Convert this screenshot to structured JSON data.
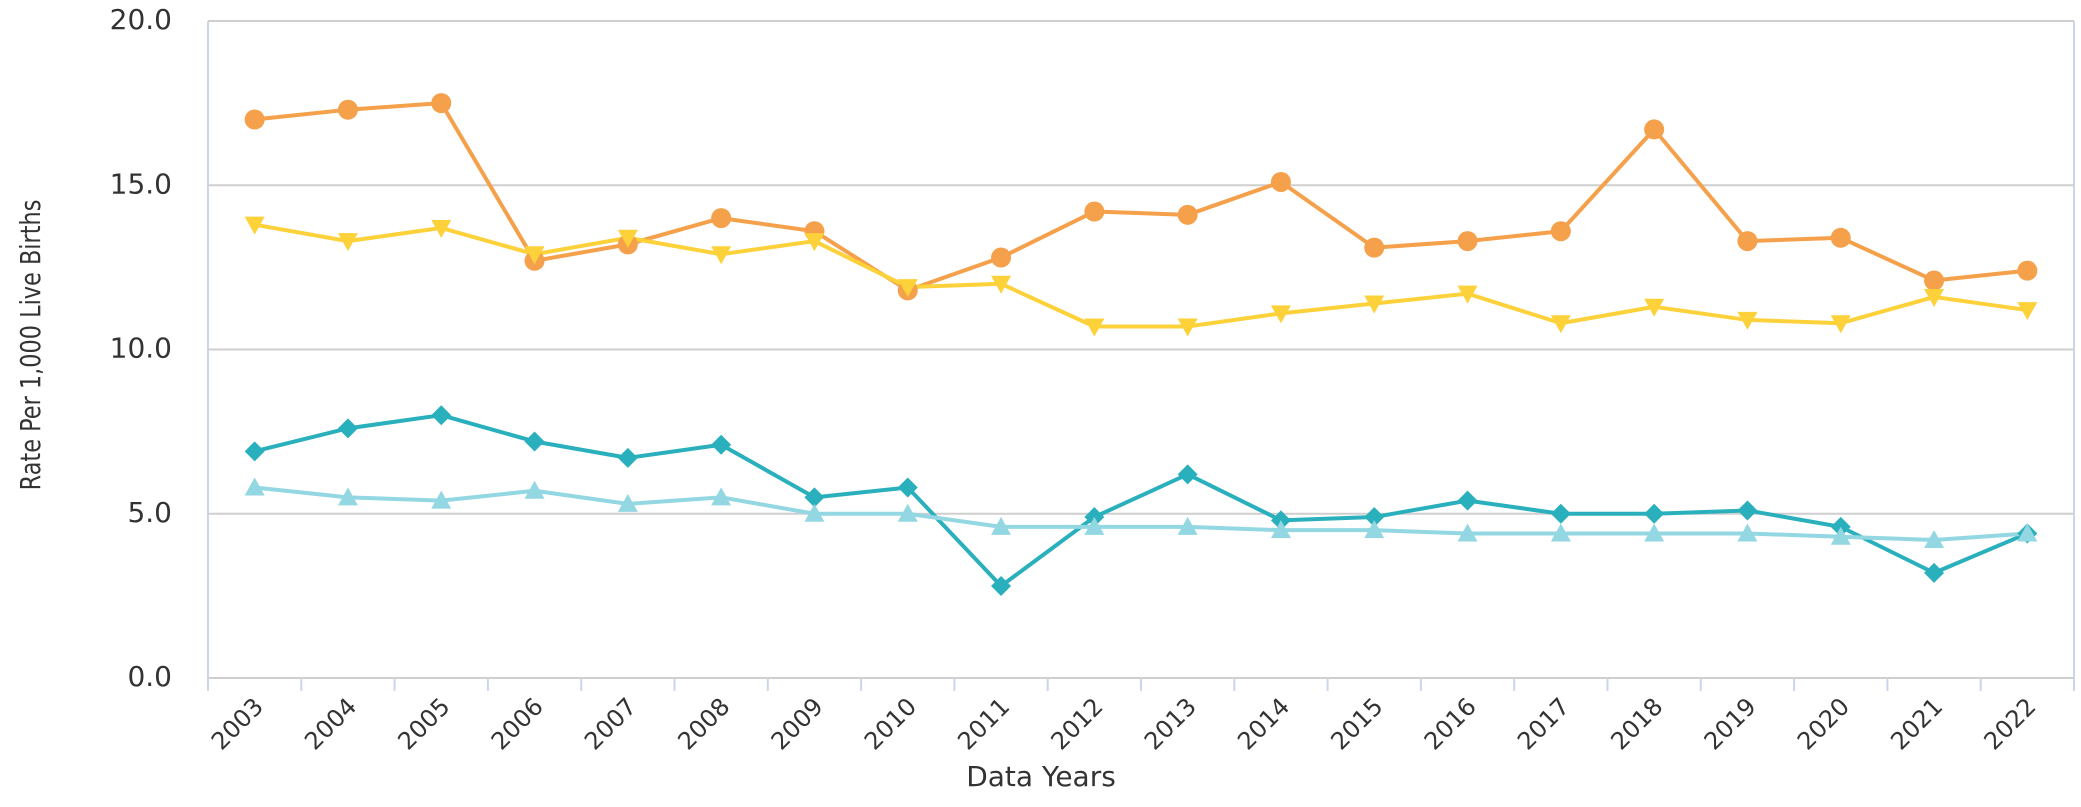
{
  "chart_data": {
    "type": "line",
    "xlabel": "Data Years",
    "ylabel": "Rate Per 1,000 Live Births",
    "categories": [
      "2003",
      "2004",
      "2005",
      "2006",
      "2007",
      "2008",
      "2009",
      "2010",
      "2011",
      "2012",
      "2013",
      "2014",
      "2015",
      "2016",
      "2017",
      "2018",
      "2019",
      "2020",
      "2021",
      "2022"
    ],
    "series": [
      {
        "color": "#f5a04a",
        "marker": "circle",
        "values": [
          17.0,
          17.3,
          17.5,
          12.7,
          13.2,
          14.0,
          13.6,
          11.8,
          12.8,
          14.2,
          14.1,
          15.1,
          13.1,
          13.3,
          13.6,
          16.7,
          13.3,
          13.4,
          12.1,
          12.4
        ]
      },
      {
        "color": "#fdd13a",
        "marker": "triangle-down",
        "values": [
          13.8,
          13.3,
          13.7,
          12.9,
          13.4,
          12.9,
          13.3,
          11.9,
          12.0,
          10.7,
          10.7,
          11.1,
          11.4,
          11.7,
          10.8,
          11.3,
          10.9,
          10.8,
          11.6,
          11.2
        ]
      },
      {
        "color": "#2ab0bd",
        "marker": "diamond",
        "values": [
          6.9,
          7.6,
          8.0,
          7.2,
          6.7,
          7.1,
          5.5,
          5.8,
          2.8,
          4.9,
          6.2,
          4.8,
          4.9,
          5.4,
          5.0,
          5.0,
          5.1,
          4.6,
          3.2,
          4.4
        ]
      },
      {
        "color": "#93d7e2",
        "marker": "triangle-up",
        "values": [
          5.8,
          5.5,
          5.4,
          5.7,
          5.3,
          5.5,
          5.0,
          5.0,
          4.6,
          4.6,
          4.6,
          4.5,
          4.5,
          4.4,
          4.4,
          4.4,
          4.4,
          4.3,
          4.2,
          4.4
        ]
      }
    ],
    "ylim": [
      0,
      20
    ],
    "yticks": [
      {
        "value": 0,
        "label": "0.0"
      },
      {
        "value": 5,
        "label": "5.0"
      },
      {
        "value": 10,
        "label": "10.0"
      },
      {
        "value": 15,
        "label": "15.0"
      },
      {
        "value": 20,
        "label": "20.0"
      }
    ],
    "grid": true
  }
}
